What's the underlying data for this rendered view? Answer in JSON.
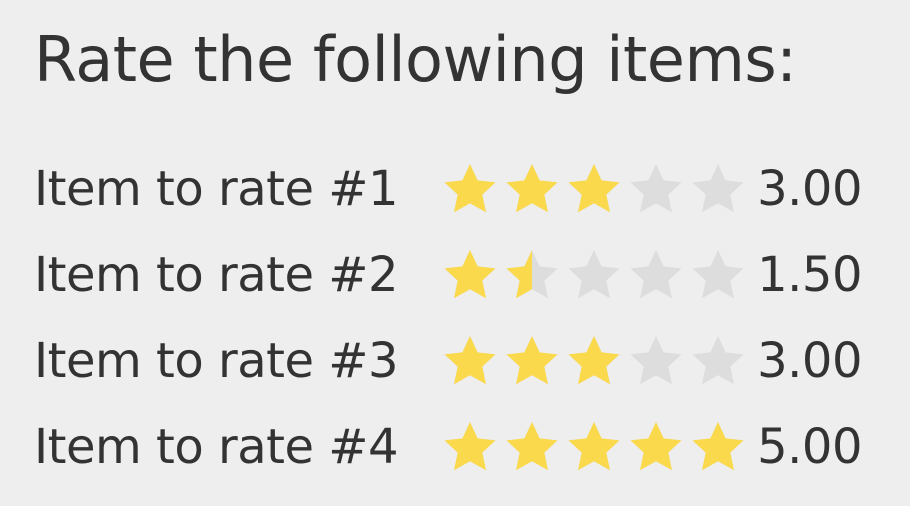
{
  "heading": "Rate the following items:",
  "colors": {
    "background": "#eeeeee",
    "text": "#333333",
    "star_filled": "#fbd94c",
    "star_empty": "#dddddd"
  },
  "max_stars": 5,
  "items": [
    {
      "label": "Item to rate #1",
      "rating": 3.0,
      "value_text": "3.00"
    },
    {
      "label": "Item to rate #2",
      "rating": 1.5,
      "value_text": "1.50"
    },
    {
      "label": "Item to rate #3",
      "rating": 3.0,
      "value_text": "3.00"
    },
    {
      "label": "Item to rate #4",
      "rating": 5.0,
      "value_text": "5.00"
    }
  ]
}
